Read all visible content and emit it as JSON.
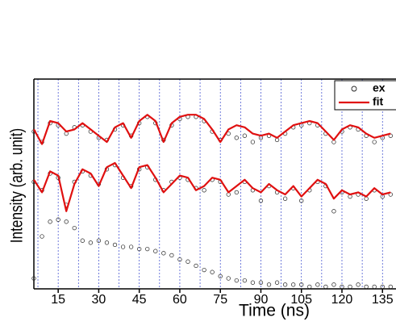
{
  "chart_data": {
    "type": "scatter",
    "x_label": "Time (ns)",
    "y_label": "Intensity (arb. unit)",
    "xlim": [
      6,
      140
    ],
    "ylim": [
      0,
      10
    ],
    "xticks": [
      15,
      30,
      45,
      60,
      75,
      90,
      105,
      120,
      135
    ],
    "xgrid": [
      7.5,
      15,
      22.5,
      30,
      37.5,
      45,
      52.5,
      60,
      67.5,
      75,
      82.5,
      90,
      97.5,
      105,
      112.5,
      120,
      127.5,
      135
    ],
    "xgrid_color": "#3344cc",
    "legend": "upper right",
    "x": [
      6,
      9,
      12,
      15,
      18,
      21,
      24,
      27,
      30,
      33,
      36,
      39,
      42,
      45,
      48,
      51,
      54,
      57,
      60,
      63,
      66,
      69,
      72,
      75,
      78,
      81,
      84,
      87,
      90,
      93,
      96,
      99,
      102,
      105,
      108,
      111,
      114,
      117,
      120,
      123,
      126,
      129,
      132,
      135,
      138
    ],
    "series": [
      {
        "name": "ex",
        "color": "#222222",
        "marker": "circle",
        "traces": [
          [
            7.5,
            7.0,
            7.9,
            7.8,
            7.4,
            7.7,
            7.8,
            7.5,
            7.2,
            7.1,
            7.6,
            7.8,
            7.3,
            7.9,
            8.2,
            7.9,
            7.1,
            7.8,
            8.1,
            8.2,
            8.2,
            8.0,
            7.5,
            7.1,
            7.4,
            7.2,
            7.3,
            7.0,
            7.2,
            7.3,
            7.1,
            7.4,
            7.7,
            7.8,
            7.9,
            7.8,
            7.4,
            7.0,
            7.5,
            7.7,
            7.6,
            7.3,
            7.0,
            7.2,
            7.3
          ],
          [
            5.1,
            4.7,
            5.5,
            5.3,
            4.0,
            5.1,
            5.6,
            5.4,
            5.0,
            5.7,
            5.9,
            5.3,
            4.9,
            5.7,
            5.8,
            5.2,
            4.7,
            5.1,
            5.3,
            5.2,
            4.8,
            4.7,
            5.2,
            5.1,
            4.5,
            4.6,
            5.1,
            4.7,
            4.2,
            4.9,
            4.6,
            4.3,
            4.8,
            4.2,
            4.7,
            5.1,
            4.9,
            3.7,
            4.6,
            4.4,
            4.5,
            4.3,
            4.7,
            4.4,
            4.5
          ],
          [
            0.5,
            2.5,
            3.2,
            3.3,
            3.2,
            2.9,
            2.3,
            2.2,
            2.3,
            2.2,
            2.1,
            2.0,
            2.0,
            1.9,
            1.9,
            1.8,
            1.7,
            1.6,
            1.4,
            1.3,
            1.1,
            0.9,
            0.8,
            0.6,
            0.5,
            0.4,
            0.4,
            0.3,
            0.3,
            0.2,
            0.3,
            0.2,
            0.2,
            0.2,
            0.1,
            0.2,
            0.1,
            0.2,
            0.1,
            0.1,
            0.2,
            0.1,
            0.1,
            0.1,
            0.1
          ]
        ]
      },
      {
        "name": "fit",
        "color": "#e01010",
        "marker": "line",
        "traces": [
          [
            7.6,
            6.9,
            8.0,
            7.9,
            7.5,
            7.6,
            7.9,
            7.6,
            7.3,
            7.0,
            7.7,
            7.9,
            7.2,
            8.0,
            8.3,
            8.0,
            7.0,
            7.9,
            8.2,
            8.3,
            8.3,
            8.1,
            7.6,
            7.0,
            7.6,
            7.8,
            7.7,
            7.4,
            7.3,
            7.4,
            7.2,
            7.5,
            7.8,
            7.9,
            8.0,
            7.9,
            7.5,
            7.1,
            7.6,
            7.8,
            7.7,
            7.4,
            7.2,
            7.3,
            7.4
          ],
          [
            5.2,
            4.6,
            5.6,
            5.4,
            3.7,
            5.0,
            5.7,
            5.5,
            4.9,
            5.8,
            6.0,
            5.4,
            4.8,
            5.8,
            5.9,
            5.3,
            4.6,
            5.0,
            5.4,
            5.3,
            4.7,
            4.9,
            5.3,
            5.2,
            4.6,
            4.9,
            5.2,
            4.8,
            4.6,
            5.0,
            4.7,
            4.5,
            4.9,
            4.4,
            4.8,
            5.2,
            5.0,
            4.3,
            4.7,
            4.5,
            4.6,
            4.4,
            4.8,
            4.5,
            4.6
          ]
        ]
      }
    ]
  }
}
